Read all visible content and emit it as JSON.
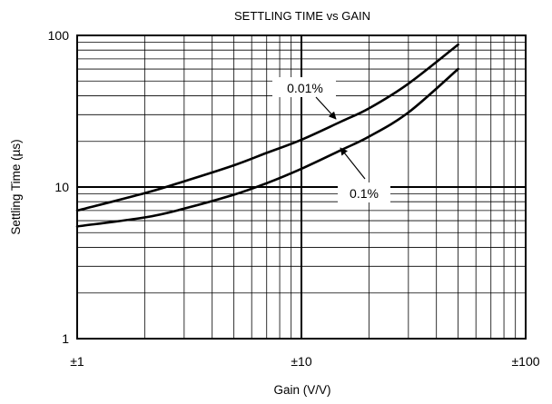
{
  "chart_data": {
    "type": "line",
    "title": "SETTLING TIME vs GAIN",
    "xlabel": "Gain (V/V)",
    "ylabel": "Settling Time (µs)",
    "x_scale": "log",
    "y_scale": "log",
    "xlim": [
      1,
      100
    ],
    "ylim": [
      1,
      100
    ],
    "grid": true,
    "x_ticks": [
      {
        "value": 1,
        "label": "±1"
      },
      {
        "value": 10,
        "label": "±10"
      },
      {
        "value": 100,
        "label": "±100"
      }
    ],
    "y_ticks": [
      {
        "value": 1,
        "label": "1"
      },
      {
        "value": 10,
        "label": "10"
      },
      {
        "value": 100,
        "label": "100"
      }
    ],
    "series": [
      {
        "name": "0.01%",
        "x": [
          1,
          2,
          3,
          5,
          7,
          10,
          15,
          20,
          30,
          50
        ],
        "y": [
          7.0,
          9.1,
          10.9,
          13.9,
          16.8,
          20.5,
          27,
          33,
          48,
          87
        ]
      },
      {
        "name": "0.1%",
        "x": [
          1,
          2,
          3,
          5,
          7,
          10,
          15,
          20,
          30,
          50
        ],
        "y": [
          5.5,
          6.3,
          7.2,
          8.9,
          10.6,
          13.2,
          17.5,
          21.5,
          31,
          60
        ]
      }
    ],
    "annotations": [
      {
        "text": "0.01%",
        "series": "0.01%"
      },
      {
        "text": "0.1%",
        "series": "0.1%"
      }
    ]
  }
}
